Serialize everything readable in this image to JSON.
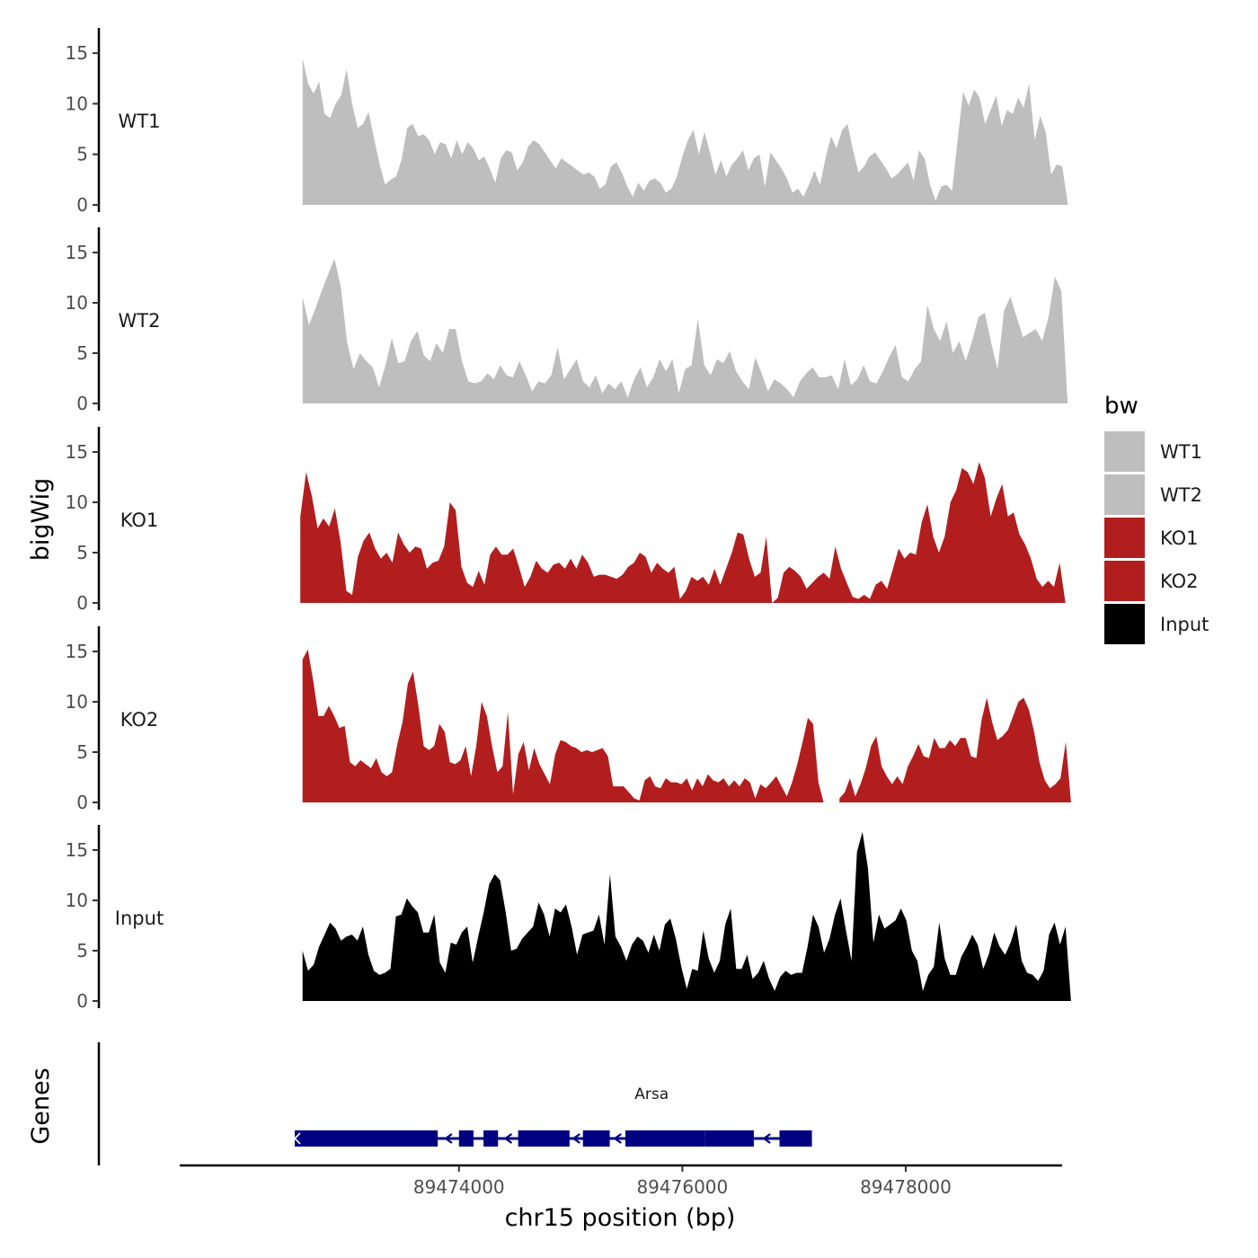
{
  "chart_data": {
    "type": "area",
    "chromosome": "chr15",
    "xlabel": "chr15 position (bp)",
    "ylabel": "bigWig",
    "genes_axis_label": "Genes",
    "xlim": [
      89471500,
      89479400
    ],
    "xticks": [
      89474000,
      89476000,
      89478000
    ],
    "xtick_labels": [
      "89474000",
      "89476000",
      "89478000"
    ],
    "ylim": [
      0,
      17.5
    ],
    "yticks": [
      0,
      5,
      10,
      15
    ],
    "ytick_labels": [
      "0",
      "5",
      "10",
      "15"
    ],
    "legend": {
      "title": "bw",
      "position": "right",
      "entries": [
        {
          "name": "WT1",
          "color": "#bebebe"
        },
        {
          "name": "WT2",
          "color": "#bebebe"
        },
        {
          "name": "KO1",
          "color": "#b21e1e"
        },
        {
          "name": "KO2",
          "color": "#b21e1e"
        },
        {
          "name": "Input",
          "color": "#000000"
        }
      ]
    },
    "tracks": [
      {
        "name": "WT1",
        "color": "#bebebe",
        "start": 89472600,
        "end": 89479450,
        "values": [
          14.5,
          12.0,
          11.0,
          12.2,
          9.0,
          8.6,
          10.0,
          10.8,
          13.4,
          10.0,
          7.6,
          8.0,
          9.2,
          6.5,
          4.0,
          2.0,
          2.5,
          2.8,
          4.5,
          7.6,
          8.0,
          6.8,
          7.0,
          6.4,
          5.0,
          6.2,
          6.0,
          4.6,
          6.4,
          5.0,
          6.2,
          5.6,
          4.4,
          4.8,
          3.6,
          2.2,
          4.6,
          5.4,
          5.2,
          3.4,
          4.2,
          5.8,
          6.4,
          6.0,
          5.2,
          4.4,
          3.6,
          4.6,
          4.2,
          3.8,
          3.4,
          3.0,
          3.2,
          2.8,
          1.6,
          2.0,
          3.8,
          4.2,
          3.2,
          1.8,
          0.8,
          2.2,
          1.4,
          2.4,
          2.6,
          2.2,
          1.2,
          1.6,
          2.8,
          4.8,
          6.4,
          7.4,
          5.0,
          7.2,
          5.2,
          3.0,
          4.4,
          2.8,
          4.0,
          4.6,
          5.4,
          3.4,
          4.6,
          5.0,
          1.8,
          5.2,
          4.4,
          3.6,
          2.6,
          1.2,
          1.6,
          0.8,
          2.0,
          3.4,
          2.0,
          4.6,
          6.8,
          5.6,
          7.4,
          8.0,
          5.4,
          3.2,
          3.8,
          4.8,
          5.2,
          4.4,
          3.6,
          2.6,
          3.0,
          3.6,
          4.2,
          2.4,
          5.4,
          4.6,
          2.0,
          0.4,
          1.8,
          2.0,
          1.4,
          6.4,
          11.2,
          9.8,
          11.4,
          10.6,
          8.0,
          9.4,
          10.8,
          7.8,
          9.4,
          9.0,
          10.6,
          9.6,
          12.0,
          6.4,
          8.8,
          7.2,
          3.0,
          4.0,
          3.8,
          0.2
        ]
      },
      {
        "name": "WT2",
        "color": "#bebebe",
        "start": 89472600,
        "end": 89479450,
        "values": [
          10.6,
          7.8,
          9.4,
          11.2,
          12.8,
          14.4,
          11.6,
          6.0,
          3.4,
          5.0,
          4.2,
          3.6,
          1.6,
          3.8,
          6.5,
          4.0,
          4.2,
          6.2,
          7.2,
          4.8,
          4.2,
          6.0,
          5.0,
          7.4,
          7.4,
          4.2,
          2.2,
          2.0,
          2.2,
          3.0,
          2.4,
          3.8,
          2.8,
          2.6,
          4.2,
          2.8,
          1.2,
          2.2,
          2.0,
          2.8,
          5.6,
          2.4,
          3.4,
          4.4,
          2.2,
          1.6,
          2.8,
          1.0,
          2.0,
          1.4,
          2.2,
          0.6,
          2.4,
          3.6,
          1.6,
          2.6,
          4.4,
          3.2,
          4.4,
          1.0,
          3.4,
          3.8,
          8.4,
          3.8,
          2.8,
          4.4,
          4.0,
          5.2,
          3.2,
          2.2,
          1.4,
          4.6,
          3.0,
          1.2,
          2.4,
          2.0,
          1.4,
          0.6,
          2.2,
          3.0,
          3.6,
          2.6,
          2.6,
          2.8,
          1.4,
          4.4,
          1.8,
          2.4,
          3.8,
          2.2,
          2.0,
          3.2,
          4.6,
          5.8,
          2.6,
          2.2,
          3.4,
          4.2,
          9.8,
          7.4,
          6.2,
          8.2,
          5.0,
          6.2,
          4.2,
          6.2,
          8.6,
          9.0,
          6.0,
          3.4,
          9.2,
          10.6,
          8.6,
          6.6,
          7.0,
          7.4,
          6.2,
          8.6,
          12.6,
          11.2,
          0.0
        ]
      },
      {
        "name": "KO1",
        "color": "#b21e1e",
        "start": 89472580,
        "end": 89479430,
        "values": [
          8.6,
          13.0,
          10.6,
          7.4,
          8.4,
          7.6,
          9.4,
          6.0,
          1.2,
          0.8,
          4.6,
          6.2,
          7.0,
          5.4,
          4.4,
          5.0,
          4.0,
          7.0,
          5.8,
          5.0,
          5.6,
          5.4,
          3.4,
          4.0,
          4.2,
          5.6,
          10.0,
          9.2,
          3.6,
          2.0,
          1.6,
          3.2,
          1.8,
          4.8,
          5.6,
          4.8,
          4.8,
          5.4,
          3.6,
          1.6,
          2.6,
          4.2,
          3.4,
          3.0,
          3.8,
          4.0,
          3.4,
          4.4,
          3.4,
          4.8,
          4.0,
          2.6,
          2.8,
          2.8,
          2.6,
          2.4,
          2.8,
          3.6,
          4.0,
          5.0,
          4.6,
          3.0,
          4.0,
          3.4,
          3.0,
          3.6,
          0.4,
          1.2,
          2.6,
          2.2,
          2.6,
          1.8,
          3.4,
          1.8,
          3.4,
          5.0,
          7.0,
          6.8,
          4.4,
          2.6,
          3.0,
          6.6,
          0.0,
          0.5,
          3.0,
          3.6,
          3.2,
          2.6,
          1.4,
          2.0,
          2.6,
          3.0,
          2.4,
          5.6,
          3.4,
          2.0,
          0.6,
          0.4,
          0.8,
          0.4,
          1.8,
          2.2,
          1.4,
          3.4,
          5.4,
          4.4,
          5.0,
          4.8,
          8.0,
          9.8,
          6.6,
          5.0,
          6.6,
          10.0,
          11.2,
          13.4,
          13.0,
          11.8,
          14.0,
          12.4,
          8.6,
          10.4,
          11.8,
          8.6,
          9.0,
          6.8,
          5.8,
          4.4,
          2.4,
          1.6,
          2.2,
          1.6,
          4.0,
          0.0
        ]
      },
      {
        "name": "KO2",
        "color": "#b21e1e",
        "start": 89472600,
        "end": 89479480,
        "values": [
          14.2,
          15.2,
          12.2,
          8.6,
          8.6,
          9.6,
          8.6,
          7.4,
          7.6,
          4.0,
          3.6,
          4.2,
          3.8,
          3.4,
          4.4,
          3.0,
          2.6,
          3.0,
          5.8,
          8.0,
          11.8,
          13.0,
          9.6,
          5.6,
          5.2,
          5.6,
          7.8,
          7.0,
          4.0,
          3.8,
          4.2,
          5.6,
          2.6,
          5.6,
          10.0,
          8.6,
          5.6,
          3.0,
          3.6,
          9.0,
          0.8,
          4.8,
          6.0,
          3.2,
          5.4,
          3.8,
          2.8,
          1.8,
          4.8,
          6.2,
          6.0,
          5.6,
          5.4,
          5.0,
          5.2,
          5.0,
          5.2,
          5.4,
          4.6,
          1.6,
          1.6,
          1.6,
          1.0,
          0.4,
          0.2,
          2.2,
          2.6,
          1.6,
          1.4,
          2.4,
          2.0,
          2.0,
          1.8,
          2.4,
          1.2,
          2.4,
          1.6,
          2.8,
          2.2,
          2.0,
          2.4,
          1.6,
          2.2,
          1.6,
          2.4,
          2.0,
          0.4,
          1.8,
          1.4,
          2.0,
          2.6,
          1.6,
          0.6,
          2.0,
          3.8,
          6.0,
          8.4,
          7.8,
          2.0,
          0.0,
          null,
          null,
          0.4,
          1.0,
          2.4,
          0.6,
          1.8,
          3.4,
          5.6,
          6.6,
          3.6,
          2.6,
          1.8,
          2.6,
          1.8,
          3.6,
          4.6,
          5.8,
          4.6,
          4.4,
          6.4,
          5.4,
          5.4,
          6.2,
          5.6,
          6.4,
          6.4,
          4.6,
          4.4,
          8.2,
          10.4,
          8.0,
          6.2,
          6.6,
          7.2,
          8.6,
          10.0,
          10.4,
          9.2,
          7.0,
          4.0,
          2.2,
          1.4,
          1.8,
          2.4,
          6.0,
          0.0
        ]
      },
      {
        "name": "Input",
        "color": "#000000",
        "start": 89472600,
        "end": 89479480,
        "values": [
          5.0,
          3.0,
          3.6,
          5.4,
          6.6,
          7.8,
          7.2,
          6.0,
          6.4,
          6.6,
          6.0,
          7.4,
          4.6,
          3.0,
          2.6,
          2.8,
          3.2,
          8.4,
          8.6,
          10.2,
          9.4,
          8.8,
          6.8,
          6.8,
          8.6,
          3.8,
          2.8,
          5.8,
          5.6,
          6.8,
          7.4,
          3.8,
          6.4,
          8.8,
          11.6,
          12.6,
          12.0,
          8.8,
          5.0,
          5.2,
          6.2,
          6.8,
          7.4,
          9.8,
          8.6,
          6.4,
          9.2,
          8.8,
          9.6,
          7.4,
          4.6,
          6.6,
          6.8,
          7.0,
          8.6,
          5.6,
          12.6,
          6.4,
          5.4,
          4.0,
          5.6,
          6.4,
          6.0,
          4.8,
          6.6,
          5.0,
          7.6,
          8.2,
          6.2,
          3.4,
          1.2,
          3.2,
          3.0,
          7.0,
          4.2,
          2.8,
          4.0,
          7.6,
          9.2,
          3.2,
          3.2,
          4.6,
          2.2,
          2.8,
          4.0,
          2.2,
          1.0,
          2.4,
          3.0,
          2.6,
          2.8,
          2.8,
          5.4,
          8.6,
          7.4,
          4.8,
          6.2,
          8.6,
          10.2,
          7.0,
          4.0,
          14.8,
          16.8,
          13.2,
          5.8,
          8.6,
          7.2,
          7.6,
          8.0,
          9.2,
          8.0,
          5.0,
          4.0,
          1.0,
          2.6,
          3.4,
          7.8,
          4.2,
          2.6,
          2.6,
          4.4,
          5.4,
          6.6,
          5.6,
          3.2,
          4.6,
          6.8,
          5.4,
          4.6,
          5.8,
          7.6,
          4.0,
          2.8,
          2.6,
          2.0,
          3.0,
          6.6,
          7.8,
          5.6,
          7.4,
          0.0
        ]
      }
    ],
    "gene_track": {
      "gene_name": "Arsa",
      "strand": "-",
      "color": "#000080",
      "start": 89472530,
      "end": 89476990,
      "exons": [
        [
          89472530,
          89473810
        ],
        [
          89474000,
          89474130
        ],
        [
          89474220,
          89474350
        ],
        [
          89474530,
          89474990
        ],
        [
          89475110,
          89475350
        ],
        [
          89475490,
          89476200
        ],
        [
          89476200,
          89476640
        ],
        [
          89476870,
          89477160
        ]
      ]
    }
  }
}
